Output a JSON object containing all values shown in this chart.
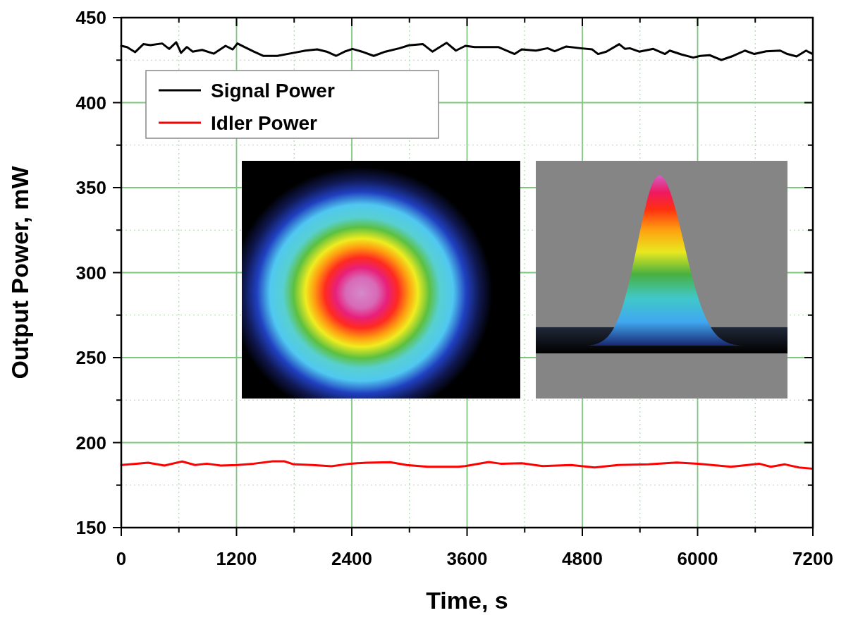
{
  "chart_data": {
    "type": "line",
    "xlabel": "Time, s",
    "ylabel": "Output Power, mW",
    "xlim": [
      0,
      7200
    ],
    "ylim": [
      150,
      450
    ],
    "xticks": [
      0,
      {
        "value": 600,
        "label": null
      },
      1200,
      {
        "value": 1800,
        "label": null
      },
      2400,
      {
        "value": 3000,
        "label": null
      },
      3600,
      {
        "value": 4200,
        "label": null
      },
      4800,
      {
        "value": 5400,
        "label": null
      },
      6000,
      {
        "value": 6600,
        "label": null
      },
      7200
    ],
    "yticks": [
      150,
      {
        "value": 175,
        "label": null
      },
      200,
      {
        "value": 225,
        "label": null
      },
      250,
      {
        "value": 275,
        "label": null
      },
      300,
      {
        "value": 325,
        "label": null
      },
      350,
      {
        "value": 375,
        "label": null
      },
      400,
      {
        "value": 425,
        "label": null
      },
      450
    ],
    "grid": true,
    "legend": "top left",
    "series": [
      {
        "name": "Signal Power",
        "color": "#000000",
        "x": [
          0,
          59,
          145,
          230,
          303,
          426,
          499,
          572,
          622,
          683,
          743,
          842,
          964,
          1086,
          1160,
          1209,
          1282,
          1380,
          1477,
          1624,
          1796,
          1918,
          2040,
          2138,
          2236,
          2334,
          2407,
          2505,
          2628,
          2750,
          2897,
          2995,
          3141,
          3239,
          3386,
          3484,
          3582,
          3679,
          3924,
          4095,
          4169,
          4316,
          4438,
          4512,
          4633,
          4780,
          4903,
          4964,
          5050,
          5184,
          5245,
          5294,
          5392,
          5539,
          5661,
          5710,
          5833,
          5955,
          6028,
          6126,
          6248,
          6371,
          6493,
          6591,
          6713,
          6860,
          6934,
          7031,
          7129,
          7191
        ],
        "values": [
          433.4,
          432.7,
          429.7,
          434.4,
          433.8,
          434.8,
          431.6,
          435.5,
          429.3,
          432.7,
          430,
          431,
          428.8,
          433.4,
          431.3,
          434.8,
          432.7,
          430,
          427.5,
          427.5,
          429.3,
          430.6,
          431.3,
          430,
          427.5,
          430.2,
          431.6,
          430,
          427.5,
          430,
          432,
          433.7,
          434.4,
          430,
          435.2,
          430.6,
          433.4,
          432.7,
          432.7,
          428.6,
          431.3,
          430.6,
          432,
          430.2,
          433,
          432,
          431.3,
          428.6,
          430,
          434.4,
          431.6,
          432,
          430,
          431.6,
          428.6,
          430.6,
          428.3,
          426.5,
          427.5,
          427.9,
          425.1,
          427.5,
          430.6,
          428.6,
          430.2,
          430.6,
          428.6,
          427.2,
          430.6,
          428.8
        ]
      },
      {
        "name": "Idler Power",
        "color": "#ff0000",
        "x": [
          0,
          156,
          279,
          450,
          634,
          768,
          890,
          1037,
          1209,
          1380,
          1576,
          1698,
          1796,
          1991,
          2187,
          2383,
          2554,
          2798,
          2970,
          3190,
          3508,
          3582,
          3826,
          3949,
          4169,
          4389,
          4683,
          4927,
          5172,
          5490,
          5784,
          6004,
          6346,
          6640,
          6762,
          6909,
          7055,
          7190
        ],
        "values": [
          186.8,
          187.6,
          188.2,
          186.5,
          188.9,
          186.8,
          187.6,
          186.5,
          186.8,
          187.6,
          189,
          189,
          187.2,
          186.8,
          186.1,
          187.6,
          188.2,
          188.5,
          186.8,
          185.8,
          185.8,
          186.2,
          188.6,
          187.6,
          187.9,
          186.2,
          186.8,
          185.4,
          186.8,
          187.2,
          188.3,
          187.6,
          185.8,
          187.6,
          185.8,
          187.2,
          185.4,
          184.7
        ]
      }
    ]
  }
}
